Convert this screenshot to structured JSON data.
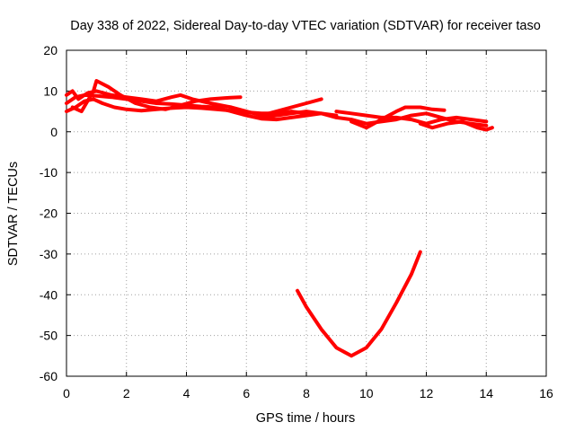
{
  "chart_data": {
    "type": "scatter",
    "title": "Day 338 of 2022, Sidereal Day-to-day VTEC variation (SDTVAR) for receiver taso",
    "xlabel": "GPS time / hours",
    "ylabel": "SDTVAR / TECUs",
    "xlim": [
      0,
      16
    ],
    "ylim": [
      -60,
      20
    ],
    "grid": true,
    "x_ticks": [
      "0",
      "2",
      "4",
      "6",
      "8",
      "10",
      "12",
      "14",
      "16"
    ],
    "y_ticks": [
      "20",
      "10",
      "0",
      "-10",
      "-20",
      "-30",
      "-40",
      "-50",
      "-60"
    ],
    "series": [
      {
        "name": "SDTVAR",
        "color": "#ff0000",
        "tracks": [
          [
            [
              0,
              5
            ],
            [
              0.3,
              6
            ],
            [
              0.6,
              7.5
            ],
            [
              0.9,
              8
            ],
            [
              1.2,
              7
            ],
            [
              1.6,
              6
            ],
            [
              2.0,
              5.5
            ],
            [
              2.5,
              5.2
            ],
            [
              3.0,
              5.5
            ],
            [
              3.5,
              5.8
            ],
            [
              4.0,
              6
            ],
            [
              4.5,
              5.8
            ],
            [
              5.0,
              5.5
            ],
            [
              5.5,
              5.2
            ],
            [
              6.0,
              4.8
            ],
            [
              6.5,
              4.5
            ],
            [
              7.0,
              4.5
            ],
            [
              7.5,
              5
            ],
            [
              8.0,
              4.5
            ]
          ],
          [
            [
              0,
              7
            ],
            [
              0.3,
              8.5
            ],
            [
              0.6,
              9
            ],
            [
              1.0,
              8.8
            ],
            [
              1.5,
              8.5
            ],
            [
              2.0,
              8
            ],
            [
              2.5,
              7.5
            ],
            [
              3.0,
              7
            ],
            [
              3.5,
              6.8
            ],
            [
              4.0,
              6.5
            ],
            [
              4.5,
              6.2
            ],
            [
              5.0,
              6
            ],
            [
              5.5,
              5
            ],
            [
              6.0,
              4
            ],
            [
              6.5,
              3.2
            ],
            [
              7.0,
              3
            ],
            [
              7.5,
              3.5
            ],
            [
              8.0,
              4
            ],
            [
              8.5,
              4.5
            ],
            [
              9.0,
              4
            ]
          ],
          [
            [
              0,
              9
            ],
            [
              0.2,
              10
            ],
            [
              0.4,
              8
            ],
            [
              0.7,
              9.5
            ],
            [
              1.0,
              10
            ],
            [
              1.5,
              9
            ],
            [
              2.0,
              8.5
            ],
            [
              2.5,
              8
            ],
            [
              3.0,
              7.5
            ],
            [
              3.5,
              8.5
            ],
            [
              3.8,
              9
            ],
            [
              4.2,
              8
            ],
            [
              4.8,
              7
            ],
            [
              5.5,
              6
            ],
            [
              6.0,
              5
            ],
            [
              6.5,
              4
            ],
            [
              7.0,
              5
            ],
            [
              7.5,
              6
            ],
            [
              8.0,
              7
            ],
            [
              8.5,
              8
            ]
          ],
          [
            [
              0.2,
              6
            ],
            [
              0.5,
              5
            ],
            [
              0.9,
              10
            ],
            [
              1.0,
              12.5
            ],
            [
              1.4,
              11
            ],
            [
              1.8,
              9
            ],
            [
              2.3,
              7
            ],
            [
              2.8,
              6
            ],
            [
              3.3,
              5.5
            ],
            [
              3.8,
              6.5
            ],
            [
              4.3,
              7.5
            ],
            [
              4.8,
              8
            ],
            [
              5.3,
              8.3
            ],
            [
              5.8,
              8.5
            ]
          ],
          [
            [
              6.5,
              3.5
            ],
            [
              7.0,
              4
            ],
            [
              7.5,
              4.5
            ],
            [
              8.0,
              5
            ],
            [
              8.5,
              4.5
            ],
            [
              9.0,
              3.5
            ],
            [
              9.5,
              3
            ],
            [
              10.0,
              2
            ],
            [
              10.5,
              2.5
            ],
            [
              11.0,
              3
            ],
            [
              11.5,
              4
            ],
            [
              12.0,
              4.5
            ],
            [
              12.5,
              3.5
            ],
            [
              13.0,
              2.5
            ],
            [
              13.5,
              2
            ],
            [
              14.0,
              1.5
            ]
          ],
          [
            [
              9.0,
              5
            ],
            [
              9.5,
              4.5
            ],
            [
              10.0,
              4
            ],
            [
              10.5,
              3.5
            ],
            [
              11.0,
              3.5
            ],
            [
              11.5,
              3
            ],
            [
              12.0,
              2
            ],
            [
              12.5,
              3
            ],
            [
              13.0,
              3.5
            ],
            [
              13.5,
              3
            ],
            [
              14.0,
              2.5
            ]
          ],
          [
            [
              9.5,
              2.5
            ],
            [
              10.0,
              1
            ],
            [
              10.5,
              3
            ],
            [
              11.0,
              5
            ],
            [
              11.3,
              6
            ],
            [
              11.8,
              6
            ],
            [
              12.2,
              5.5
            ],
            [
              12.6,
              5.3
            ]
          ],
          [
            [
              11.8,
              2
            ],
            [
              12.2,
              1
            ],
            [
              12.7,
              2
            ],
            [
              13.2,
              2.5
            ],
            [
              13.7,
              1
            ],
            [
              14.0,
              0.5
            ],
            [
              14.2,
              1
            ]
          ],
          [
            [
              7.7,
              -39
            ],
            [
              8.0,
              -43
            ],
            [
              8.5,
              -48.5
            ],
            [
              9.0,
              -53
            ],
            [
              9.5,
              -55
            ],
            [
              10.0,
              -53
            ],
            [
              10.5,
              -48.5
            ],
            [
              11.0,
              -42
            ],
            [
              11.5,
              -35
            ],
            [
              11.8,
              -29.5
            ]
          ]
        ]
      }
    ]
  }
}
